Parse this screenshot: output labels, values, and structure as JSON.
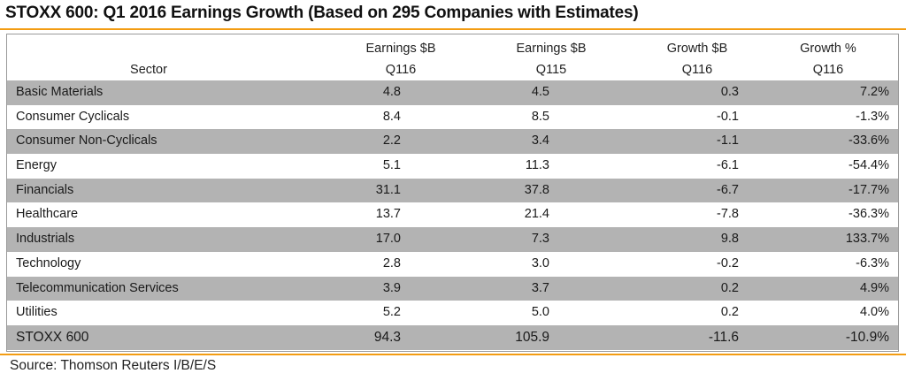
{
  "title": "STOXX 600: Q1 2016 Earnings Growth (Based on 295 Companies with Estimates)",
  "colors": {
    "rule": "#f39c12",
    "shade": "#b3b3b3",
    "border": "#9a9a9a"
  },
  "table": {
    "headers": {
      "sector": "Sector",
      "earnings_q116": {
        "line1": "Earnings $B",
        "line2": "Q116"
      },
      "earnings_q115": {
        "line1": "Earnings $B",
        "line2": "Q115"
      },
      "growth_b": {
        "line1": "Growth $B",
        "line2": "Q116"
      },
      "growth_pct": {
        "line1": "Growth %",
        "line2": "Q116"
      }
    },
    "rows": [
      {
        "sector": "Basic Materials",
        "e16": "4.8",
        "e15": "4.5",
        "g": "0.3",
        "gp": "7.2%"
      },
      {
        "sector": "Consumer Cyclicals",
        "e16": "8.4",
        "e15": "8.5",
        "g": "-0.1",
        "gp": "-1.3%"
      },
      {
        "sector": "Consumer Non-Cyclicals",
        "e16": "2.2",
        "e15": "3.4",
        "g": "-1.1",
        "gp": "-33.6%"
      },
      {
        "sector": "Energy",
        "e16": "5.1",
        "e15": "11.3",
        "g": "-6.1",
        "gp": "-54.4%"
      },
      {
        "sector": "Financials",
        "e16": "31.1",
        "e15": "37.8",
        "g": "-6.7",
        "gp": "-17.7%"
      },
      {
        "sector": "Healthcare",
        "e16": "13.7",
        "e15": "21.4",
        "g": "-7.8",
        "gp": "-36.3%"
      },
      {
        "sector": "Industrials",
        "e16": "17.0",
        "e15": "7.3",
        "g": "9.8",
        "gp": "133.7%"
      },
      {
        "sector": "Technology",
        "e16": "2.8",
        "e15": "3.0",
        "g": "-0.2",
        "gp": "-6.3%"
      },
      {
        "sector": "Telecommunication Services",
        "e16": "3.9",
        "e15": "3.7",
        "g": "0.2",
        "gp": "4.9%"
      },
      {
        "sector": "Utilities",
        "e16": "5.2",
        "e15": "5.0",
        "g": "0.2",
        "gp": "4.0%"
      },
      {
        "sector": "STOXX 600",
        "e16": "94.3",
        "e15": "105.9",
        "g": "-11.6",
        "gp": "-10.9%"
      }
    ]
  },
  "source": "Source: Thomson Reuters I/B/E/S"
}
